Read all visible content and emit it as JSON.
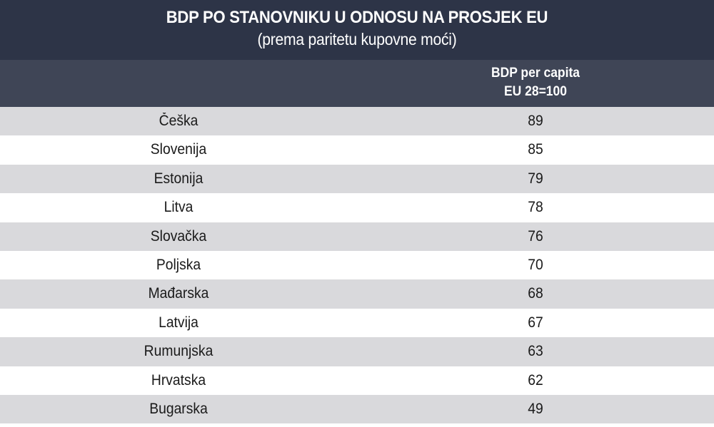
{
  "title": "BDP PO STANOVNIKU U ODNOSU NA PROSJEK EU",
  "subtitle": "(prema paritetu kupovne moći)",
  "table": {
    "header": {
      "country_col": "",
      "value_col_line1": "BDP per capita",
      "value_col_line2": "EU 28=100"
    }
  },
  "colors": {
    "title_bg": "#2d3447",
    "header_bg": "#3f4556",
    "stripe": "#d9d9dc",
    "text": "#1a1a1a"
  },
  "chart_data": {
    "type": "table",
    "title": "BDP PO STANOVNIKU U ODNOSU NA PROSJEK EU",
    "subtitle": "(prema paritetu kupovne moći)",
    "columns": [
      "",
      "BDP per capita EU 28=100"
    ],
    "categories": [
      "Češka",
      "Slovenija",
      "Estonija",
      "Litva",
      "Slovačka",
      "Poljska",
      "Mađarska",
      "Latvija",
      "Rumunjska",
      "Hrvatska",
      "Bugarska"
    ],
    "values": [
      89,
      85,
      79,
      78,
      76,
      70,
      68,
      67,
      63,
      62,
      49
    ]
  }
}
